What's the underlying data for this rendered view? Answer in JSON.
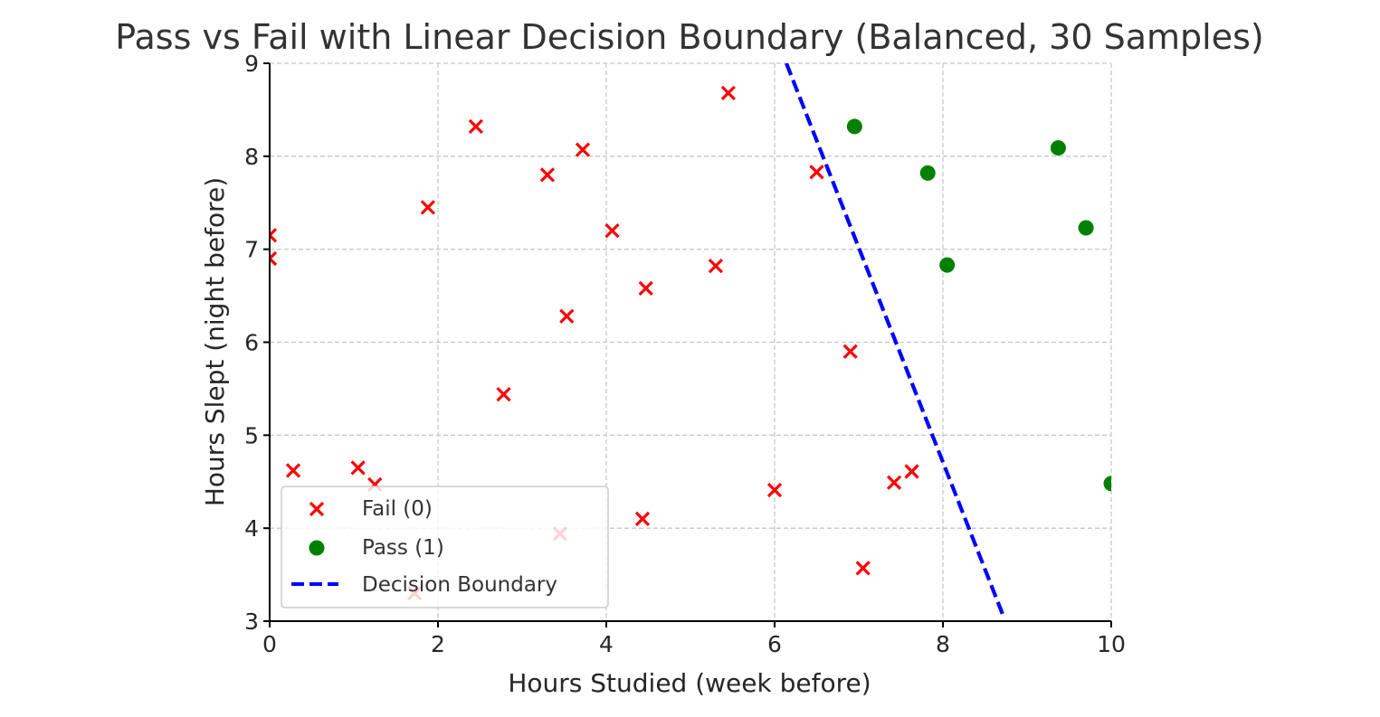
{
  "chart_data": {
    "type": "scatter",
    "title": "Pass vs Fail with Linear Decision Boundary (Balanced, 30 Samples)",
    "xlabel": "Hours Studied (week before)",
    "ylabel": "Hours Slept (night before)",
    "xlim": [
      0,
      10
    ],
    "ylim": [
      3,
      9
    ],
    "xticks": [
      0,
      2,
      4,
      6,
      8,
      10
    ],
    "yticks": [
      3,
      4,
      5,
      6,
      7,
      8,
      9
    ],
    "grid": true,
    "legend_position": "lower-left",
    "series": [
      {
        "name": "Fail (0)",
        "marker": "x",
        "color": "#ff0000",
        "points": [
          [
            0.0,
            7.15
          ],
          [
            0.0,
            6.9
          ],
          [
            0.28,
            4.62
          ],
          [
            1.05,
            4.65
          ],
          [
            1.25,
            4.47
          ],
          [
            1.72,
            3.3
          ],
          [
            1.88,
            7.45
          ],
          [
            2.45,
            8.32
          ],
          [
            2.78,
            5.44
          ],
          [
            3.3,
            7.8
          ],
          [
            3.45,
            3.94
          ],
          [
            3.53,
            6.28
          ],
          [
            3.72,
            8.07
          ],
          [
            4.07,
            7.2
          ],
          [
            4.43,
            4.1
          ],
          [
            4.47,
            6.58
          ],
          [
            5.3,
            6.82
          ],
          [
            5.45,
            8.68
          ],
          [
            6.0,
            4.41
          ],
          [
            6.5,
            7.83
          ],
          [
            6.9,
            5.9
          ],
          [
            7.05,
            3.57
          ],
          [
            7.42,
            4.49
          ],
          [
            7.63,
            4.61
          ]
        ]
      },
      {
        "name": "Pass (1)",
        "marker": "o",
        "color": "#008000",
        "points": [
          [
            6.95,
            8.32
          ],
          [
            7.82,
            7.82
          ],
          [
            8.05,
            6.83
          ],
          [
            9.37,
            8.09
          ],
          [
            9.7,
            7.23
          ],
          [
            10.0,
            4.48
          ]
        ]
      }
    ],
    "boundary": {
      "name": "Decision Boundary",
      "style": "dashed",
      "color": "#0000ff",
      "points": [
        [
          6.14,
          9.0
        ],
        [
          8.72,
          3.05
        ]
      ]
    }
  }
}
